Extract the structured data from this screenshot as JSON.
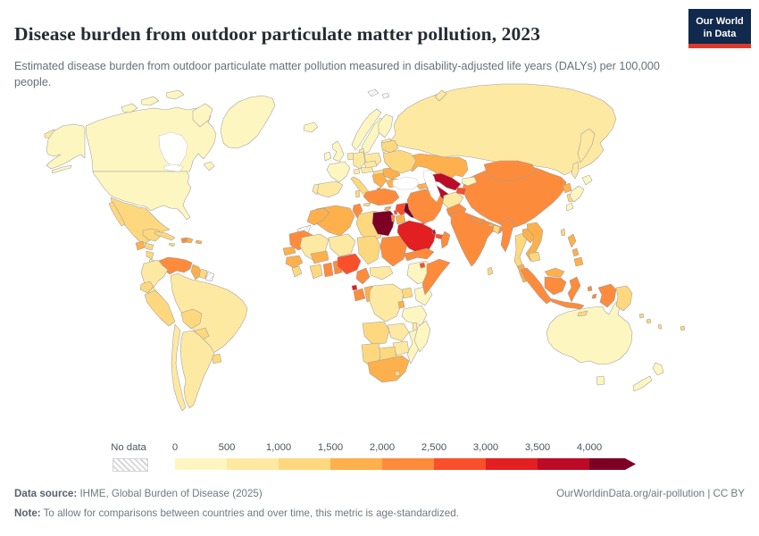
{
  "header": {
    "title": "Disease burden from outdoor particulate matter pollution, 2023",
    "subtitle": "Estimated disease burden from outdoor particulate matter pollution measured in disability-adjusted life years (DALYs) per 100,000 people.",
    "logo": {
      "line1": "Our World",
      "line2": "in Data",
      "bg": "#10294c",
      "accent": "#dc3a2d"
    }
  },
  "legend": {
    "no_data_label": "No data",
    "ticks": [
      "0",
      "500",
      "1,000",
      "1,500",
      "2,000",
      "2,500",
      "3,000",
      "3,500",
      "4,000"
    ],
    "colors": [
      "#FEF6C0",
      "#FEE9A2",
      "#FED87E",
      "#FDB04B",
      "#FC8C3C",
      "#F94F2B",
      "#E21F21",
      "#BC0B26",
      "#7D0025"
    ]
  },
  "chart_data": {
    "type": "heatmap",
    "subtype": "choropleth-world-map",
    "title": "Disease burden from outdoor particulate matter pollution, 2023",
    "unit": "DALYs per 100,000 people (age-standardized)",
    "legend_position": "bottom",
    "scale_ticks": [
      0,
      500,
      1000,
      1500,
      2000,
      2500,
      3000,
      3500,
      4000
    ],
    "bucket_ranges": [
      "0-500",
      "500-1,000",
      "1,000-1,500",
      "1,500-2,000",
      "2,000-2,500",
      "2,500-3,000",
      "3,000-3,500",
      "3,500-4,000",
      "4,000+",
      "No data"
    ],
    "countries": {
      "Egypt": "4,000+",
      "Iraq": "4,000+",
      "Turkmenistan": "3,500-4,000",
      "Uzbekistan": "3,500-4,000",
      "Qatar": "3,500-4,000",
      "Saudi Arabia": "3,000-3,500",
      "Kuwait": "3,000-3,500",
      "Equatorial Guinea": "3,000-3,500",
      "Nigeria": "2,500-3,000",
      "Syria": "2,500-3,000",
      "Azerbaijan": "2,500-3,000",
      "Armenia": "2,500-3,000",
      "Tajikistan": "2,500-3,000",
      "United Arab Emirates": "2,500-3,000",
      "Djibouti": "2,500-3,000",
      "Lebanon": "2,500-3,000",
      "India": "2,000-2,500",
      "China": "2,000-2,500",
      "Pakistan": "2,000-2,500",
      "Iran": "2,000-2,500",
      "Turkey": "2,000-2,500",
      "Mongolia": "2,000-2,500",
      "Myanmar": "2,000-2,500",
      "Indonesia": "2,000-2,500",
      "Venezuela": "2,000-2,500",
      "Haiti": "2,000-2,500",
      "Sudan": "2,000-2,500",
      "Somalia": "2,000-2,500",
      "Ghana": "2,000-2,500",
      "Gabon": "2,000-2,500",
      "Cameroon": "2,000-2,500",
      "Mauritania": "2,000-2,500",
      "Tunisia": "2,000-2,500",
      "Eritrea": "2,000-2,500",
      "Oman": "2,000-2,500",
      "Yemen": "2,000-2,500",
      "Nepal": "2,000-2,500",
      "Israel": "2,000-2,500",
      "Kazakhstan": "1,500-2,000",
      "Morocco": "1,500-2,000",
      "Algeria": "1,500-2,000",
      "South Africa": "1,500-2,000",
      "Vietnam": "1,500-2,000",
      "Laos": "1,500-2,000",
      "Philippines": "1,500-2,000",
      "Malaysia": "1,500-2,000",
      "North Korea": "1,500-2,000",
      "Guatemala": "1,500-2,000",
      "Serbia": "1,500-2,000",
      "Greece": "1,500-2,000",
      "Romania": "1,500-2,000",
      "Bulgaria": "1,500-2,000",
      "Georgia": "1,500-2,000",
      "Jordan": "1,500-2,000",
      "Senegal": "1,500-2,000",
      "Guinea": "1,500-2,000",
      "Burkina Faso": "1,500-2,000",
      "Dominican Republic": "1,500-2,000",
      "Guyana": "1,500-2,000",
      "Mexico": "1,000-1,500",
      "Libya": "1,000-1,500",
      "Chad": "1,000-1,500",
      "Cuba": "1,000-1,500",
      "Peru": "1,000-1,500",
      "Bolivia": "1,000-1,500",
      "Ecuador": "1,000-1,500",
      "Paraguay": "1,000-1,500",
      "Uruguay": "1,000-1,500",
      "Thailand": "1,000-1,500",
      "Cambodia": "1,000-1,500",
      "Italy": "1,000-1,500",
      "Hungary": "1,000-1,500",
      "Ukraine": "1,000-1,500",
      "Belarus": "1,000-1,500",
      "South Korea": "1,000-1,500",
      "Taiwan": "1,000-1,500",
      "Bangladesh": "1,000-1,500",
      "Sri Lanka": "1,000-1,500",
      "Angola": "1,000-1,500",
      "Botswana": "1,000-1,500",
      "Namibia": "1,000-1,500",
      "Uganda": "1,000-1,500",
      "Papua New Guinea": "1,000-1,500",
      "Honduras": "1,000-1,500",
      "Nicaragua": "1,000-1,500",
      "Panama": "1,000-1,500",
      "Brazil": "500-1,000",
      "Russia": "500-1,000",
      "Germany": "500-1,000",
      "Poland": "500-1,000",
      "Spain": "500-1,000",
      "Portugal": "500-1,000",
      "Argentina": "500-1,000",
      "Chile": "500-1,000",
      "Colombia": "500-1,000",
      "Afghanistan": "500-1,000",
      "Mali": "500-1,000",
      "Niger": "500-1,000",
      "DR Congo": "500-1,000",
      "Zambia": "500-1,000",
      "Zimbabwe": "500-1,000",
      "Central African Republic": "500-1,000",
      "Denmark": "500-1,000",
      "Costa Rica": "500-1,000",
      "United States": "0-500",
      "Canada": "0-500",
      "Greenland": "0-500",
      "Australia": "0-500",
      "Japan": "0-500",
      "France": "0-500",
      "United Kingdom": "0-500",
      "Ireland": "0-500",
      "Iceland": "0-500",
      "Norway": "0-500",
      "Sweden": "0-500",
      "Finland": "0-500",
      "Kenya": "0-500",
      "Ethiopia": "0-500",
      "Tanzania": "0-500",
      "Mozambique": "0-500",
      "Madagascar": "0-500",
      "Kyrgyzstan": "0-500",
      "New Zealand": "0-500",
      "Western Sahara": "No data",
      "French Guiana": "No data",
      "Svalbard": "No data"
    }
  },
  "map": {
    "ocean": "#ffffff",
    "border_color": "#9e9e9e",
    "countries": {
      "usa": 0,
      "canada": 0,
      "greenland": 0,
      "mexico": 2,
      "guatemala": 3,
      "honduras": 2,
      "nicaragua": 2,
      "costa-rica": 1,
      "panama": 2,
      "cuba": 2,
      "jamaica": 2,
      "haiti": 4,
      "dominican-republic": 3,
      "puerto-rico": 3,
      "venezuela": 4,
      "guyana": 3,
      "suriname": 2,
      "french-guiana": "n",
      "colombia": 1,
      "ecuador": 2,
      "peru": 2,
      "brazil": 1,
      "bolivia": 2,
      "paraguay": 2,
      "uruguay": 2,
      "argentina": 1,
      "chile": 1,
      "iceland": 0,
      "uk": 0,
      "ireland": 0,
      "norway": 0,
      "sweden": 0,
      "finland": 0,
      "denmark": 1,
      "baltics": 1,
      "poland": 1,
      "germany": 1,
      "benelux": 1,
      "france": 0,
      "spain": 1,
      "portugal": 1,
      "switzerland": 1,
      "austria": 1,
      "czech": 1,
      "hungary": 2,
      "italy": 2,
      "balkans": 3,
      "albania": 4,
      "greece": 3,
      "romania": 3,
      "bulgaria": 3,
      "moldova": 3,
      "ukraine": 2,
      "belarus": 2,
      "russia": 1,
      "svalbard": "n",
      "kazakhstan": 3,
      "uzbekistan": 7,
      "turkmenistan": 7,
      "kyrgyzstan": 0,
      "tajikistan": 5,
      "georgia": 3,
      "azerbaijan": 5,
      "armenia": 5,
      "turkey": 4,
      "cyprus": 3,
      "syria": 5,
      "lebanon": 5,
      "israel": 4,
      "jordan": 3,
      "iraq": 8,
      "kuwait": 6,
      "saudi-arabia": 6,
      "qatar": 7,
      "uae": 5,
      "oman": 4,
      "yemen": 4,
      "iran": 4,
      "afghanistan": 1,
      "pakistan": 4,
      "india": 4,
      "nepal": 4,
      "bhutan": 3,
      "bangladesh": 2,
      "sri-lanka": 2,
      "china": 4,
      "mongolia": 4,
      "north-korea": 3,
      "south-korea": 2,
      "japan": 0,
      "taiwan": 2,
      "myanmar": 4,
      "thailand": 2,
      "laos": 3,
      "vietnam": 3,
      "cambodia": 2,
      "malaysia": 3,
      "indonesia": 4,
      "philippines": 3,
      "papua-new-guinea": 2,
      "timor": 2,
      "solomon-islands": 2,
      "fiji": 2,
      "vanuatu": 2,
      "australia": 0,
      "new-zealand": 0,
      "morocco": 3,
      "western-sahara": "n",
      "algeria": 3,
      "tunisia": 4,
      "libya": 2,
      "egypt": 8,
      "mauritania": 4,
      "mali": 1,
      "niger": 1,
      "chad": 2,
      "sudan": 4,
      "senegal": 3,
      "guinea": 3,
      "sierra-leone": 2,
      "ivory-coast": 2,
      "ghana": 4,
      "togo-benin": 4,
      "burkina-faso": 3,
      "nigeria": 5,
      "cameroon": 4,
      "central-african-republic": 1,
      "equatorial-guinea": 6,
      "gabon": 4,
      "congo": 3,
      "dr-congo": 1,
      "uganda": 2,
      "kenya": 0,
      "ethiopia": 0,
      "eritrea": 4,
      "djibouti": 5,
      "somalia": 4,
      "rwanda-burundi": 3,
      "tanzania": 0,
      "angola": 2,
      "zambia": 1,
      "malawi": 1,
      "mozambique": 0,
      "zimbabwe": 1,
      "botswana": 2,
      "namibia": 2,
      "south-africa": 3,
      "lesotho": 2,
      "madagascar": 0
    }
  },
  "footer": {
    "source_label": "Data source:",
    "source_text": " IHME, Global Burden of Disease (2025)",
    "right_text": "OurWorldinData.org/air-pollution | CC BY",
    "note_label": "Note:",
    "note_text": " To allow for comparisons between countries and over time, this metric is age-standardized."
  }
}
